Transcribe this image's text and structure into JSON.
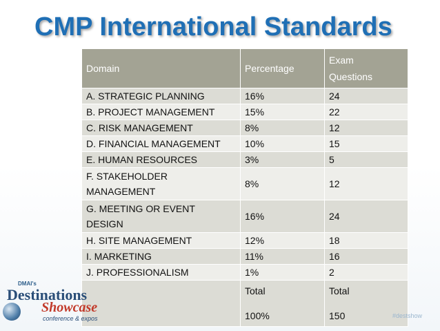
{
  "slide": {
    "title": "CMP International Standards"
  },
  "table": {
    "headers": {
      "domain": "Domain",
      "percentage": "Percentage",
      "exam_line1": "Exam",
      "exam_line2": "Questions"
    },
    "rows": [
      {
        "domain": "A. STRATEGIC PLANNING",
        "percentage": "16%",
        "questions": "24"
      },
      {
        "domain": "B. PROJECT  MANAGEMENT",
        "percentage": "15%",
        "questions": "22"
      },
      {
        "domain": "C. RISK MANAGEMENT",
        "percentage": "8%",
        "questions": "12"
      },
      {
        "domain": "D. FINANCIAL MANAGEMENT",
        "percentage": "10%",
        "questions": "15"
      },
      {
        "domain": "E. HUMAN RESOURCES",
        "percentage": "3%",
        "questions": "5"
      },
      {
        "domain_line1": "F. STAKEHOLDER",
        "domain_line2": "MANAGEMENT",
        "percentage": "8%",
        "questions": "12"
      },
      {
        "domain_line1": "G. MEETING OR EVENT",
        "domain_line2": "DESIGN",
        "percentage": "16%",
        "questions": "24"
      },
      {
        "domain": "H. SITE MANAGEMENT",
        "percentage": "12%",
        "questions": "18"
      },
      {
        "domain": "I.  MARKETING",
        "percentage": "11%",
        "questions": "16"
      },
      {
        "domain": "J. PROFESSIONALISM",
        "percentage": "1%",
        "questions": "2"
      }
    ],
    "total": {
      "percentage_label": "Total",
      "percentage_value": "100%",
      "questions_label": "Total",
      "questions_value": "150"
    }
  },
  "branding": {
    "logo_top": "DMAI's",
    "logo_line1": "Destinations",
    "logo_line2": "Showcase",
    "logo_line3": "conference & expos",
    "footer_tag": "#destshow"
  },
  "colors": {
    "title": "#1f6fb5",
    "header_bg": "#a3a394",
    "row_odd": "#dcdcd5",
    "row_even": "#eeeeea"
  }
}
